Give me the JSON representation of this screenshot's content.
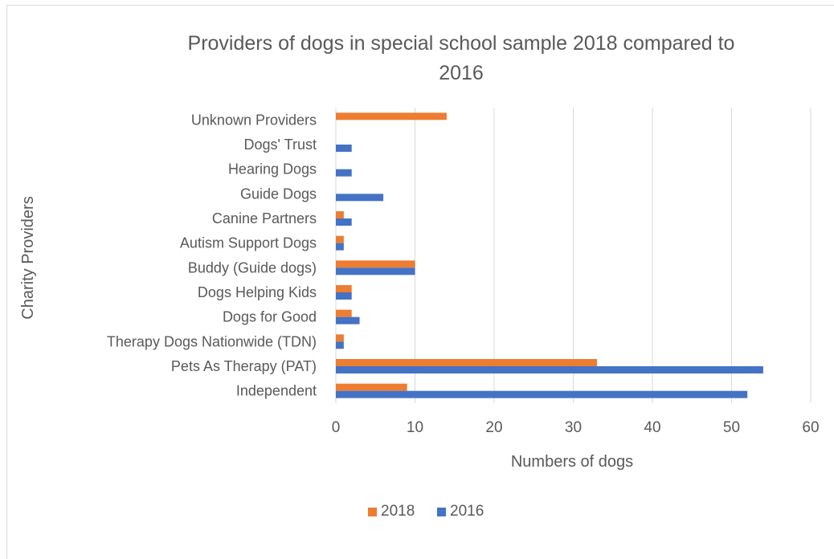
{
  "chart_data": {
    "type": "bar",
    "orientation": "horizontal",
    "title": "Providers of dogs in special school sample 2018 compared to 2016",
    "title_lines": [
      "Providers of dogs in special school sample 2018 compared to",
      "2016"
    ],
    "xlabel": "Numbers of dogs",
    "ylabel": "Charity Providers",
    "xlim": [
      0,
      60
    ],
    "x_ticks": [
      0,
      10,
      20,
      30,
      40,
      50,
      60
    ],
    "grid": true,
    "legend_position": "bottom",
    "categories": [
      "Unknown Providers",
      "Dogs' Trust",
      "Hearing Dogs",
      "Guide Dogs",
      "Canine Partners",
      "Autism Support Dogs",
      "Buddy (Guide dogs)",
      "Dogs Helping Kids",
      "Dogs for Good",
      "Therapy Dogs Nationwide (TDN)",
      "Pets As Therapy (PAT)",
      "Independent"
    ],
    "series": [
      {
        "name": "2018",
        "color": "#ed7d31",
        "values": [
          14,
          0,
          0,
          0,
          1,
          1,
          10,
          2,
          2,
          1,
          33,
          9
        ]
      },
      {
        "name": "2016",
        "color": "#4472c4",
        "values": [
          0,
          2,
          2,
          6,
          2,
          1,
          10,
          2,
          3,
          1,
          54,
          52
        ]
      }
    ]
  }
}
